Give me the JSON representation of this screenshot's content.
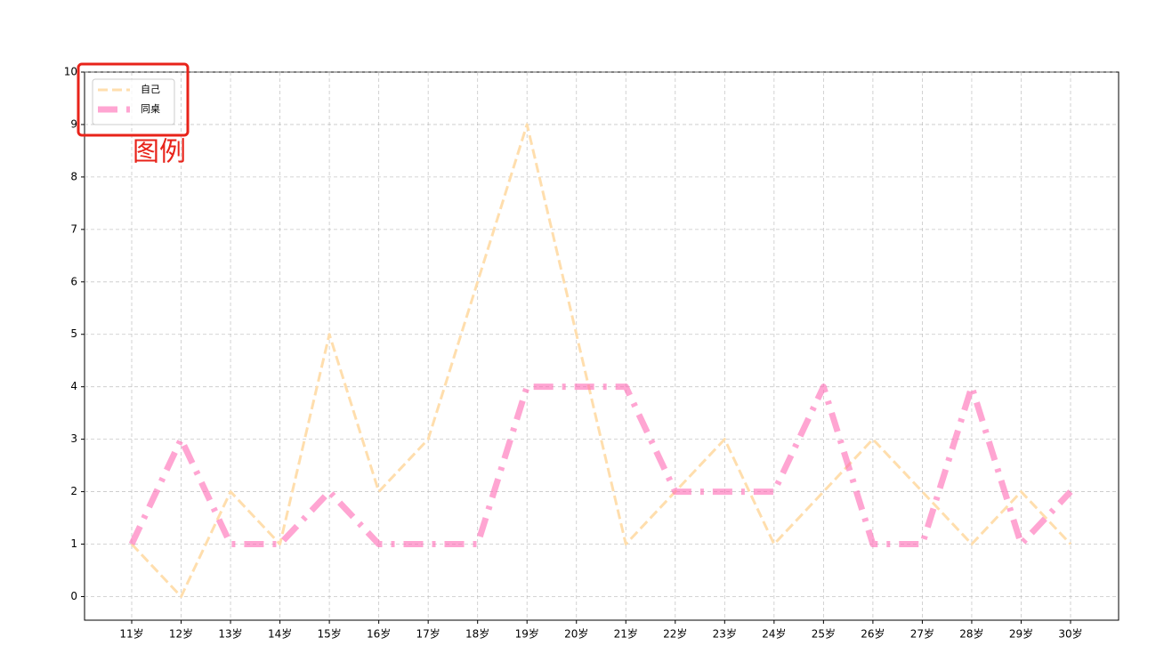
{
  "chart_data": {
    "type": "line",
    "categories": [
      "11岁",
      "12岁",
      "13岁",
      "14岁",
      "15岁",
      "16岁",
      "17岁",
      "18岁",
      "19岁",
      "20岁",
      "21岁",
      "22岁",
      "23岁",
      "24岁",
      "25岁",
      "26岁",
      "27岁",
      "28岁",
      "29岁",
      "30岁"
    ],
    "series": [
      {
        "name": "自己",
        "color": "#ffdead",
        "linestyle": "dashed",
        "values": [
          1,
          0,
          2,
          1,
          5,
          2,
          3,
          6,
          9,
          5,
          1,
          2,
          3,
          1,
          2,
          3,
          2,
          1,
          2,
          1
        ]
      },
      {
        "name": "同桌",
        "color": "#ff69b4",
        "linestyle": "dashdot",
        "values": [
          1,
          3,
          1,
          1,
          2,
          1,
          1,
          1,
          4,
          4,
          4,
          2,
          2,
          2,
          4,
          1,
          1,
          4,
          1,
          2
        ]
      }
    ],
    "ylim": [
      -0.45,
      10
    ],
    "yticks": [
      0,
      1,
      2,
      3,
      4,
      5,
      6,
      7,
      8,
      9,
      10
    ],
    "grid": true,
    "legend": "upper left",
    "annotation": "图例"
  }
}
